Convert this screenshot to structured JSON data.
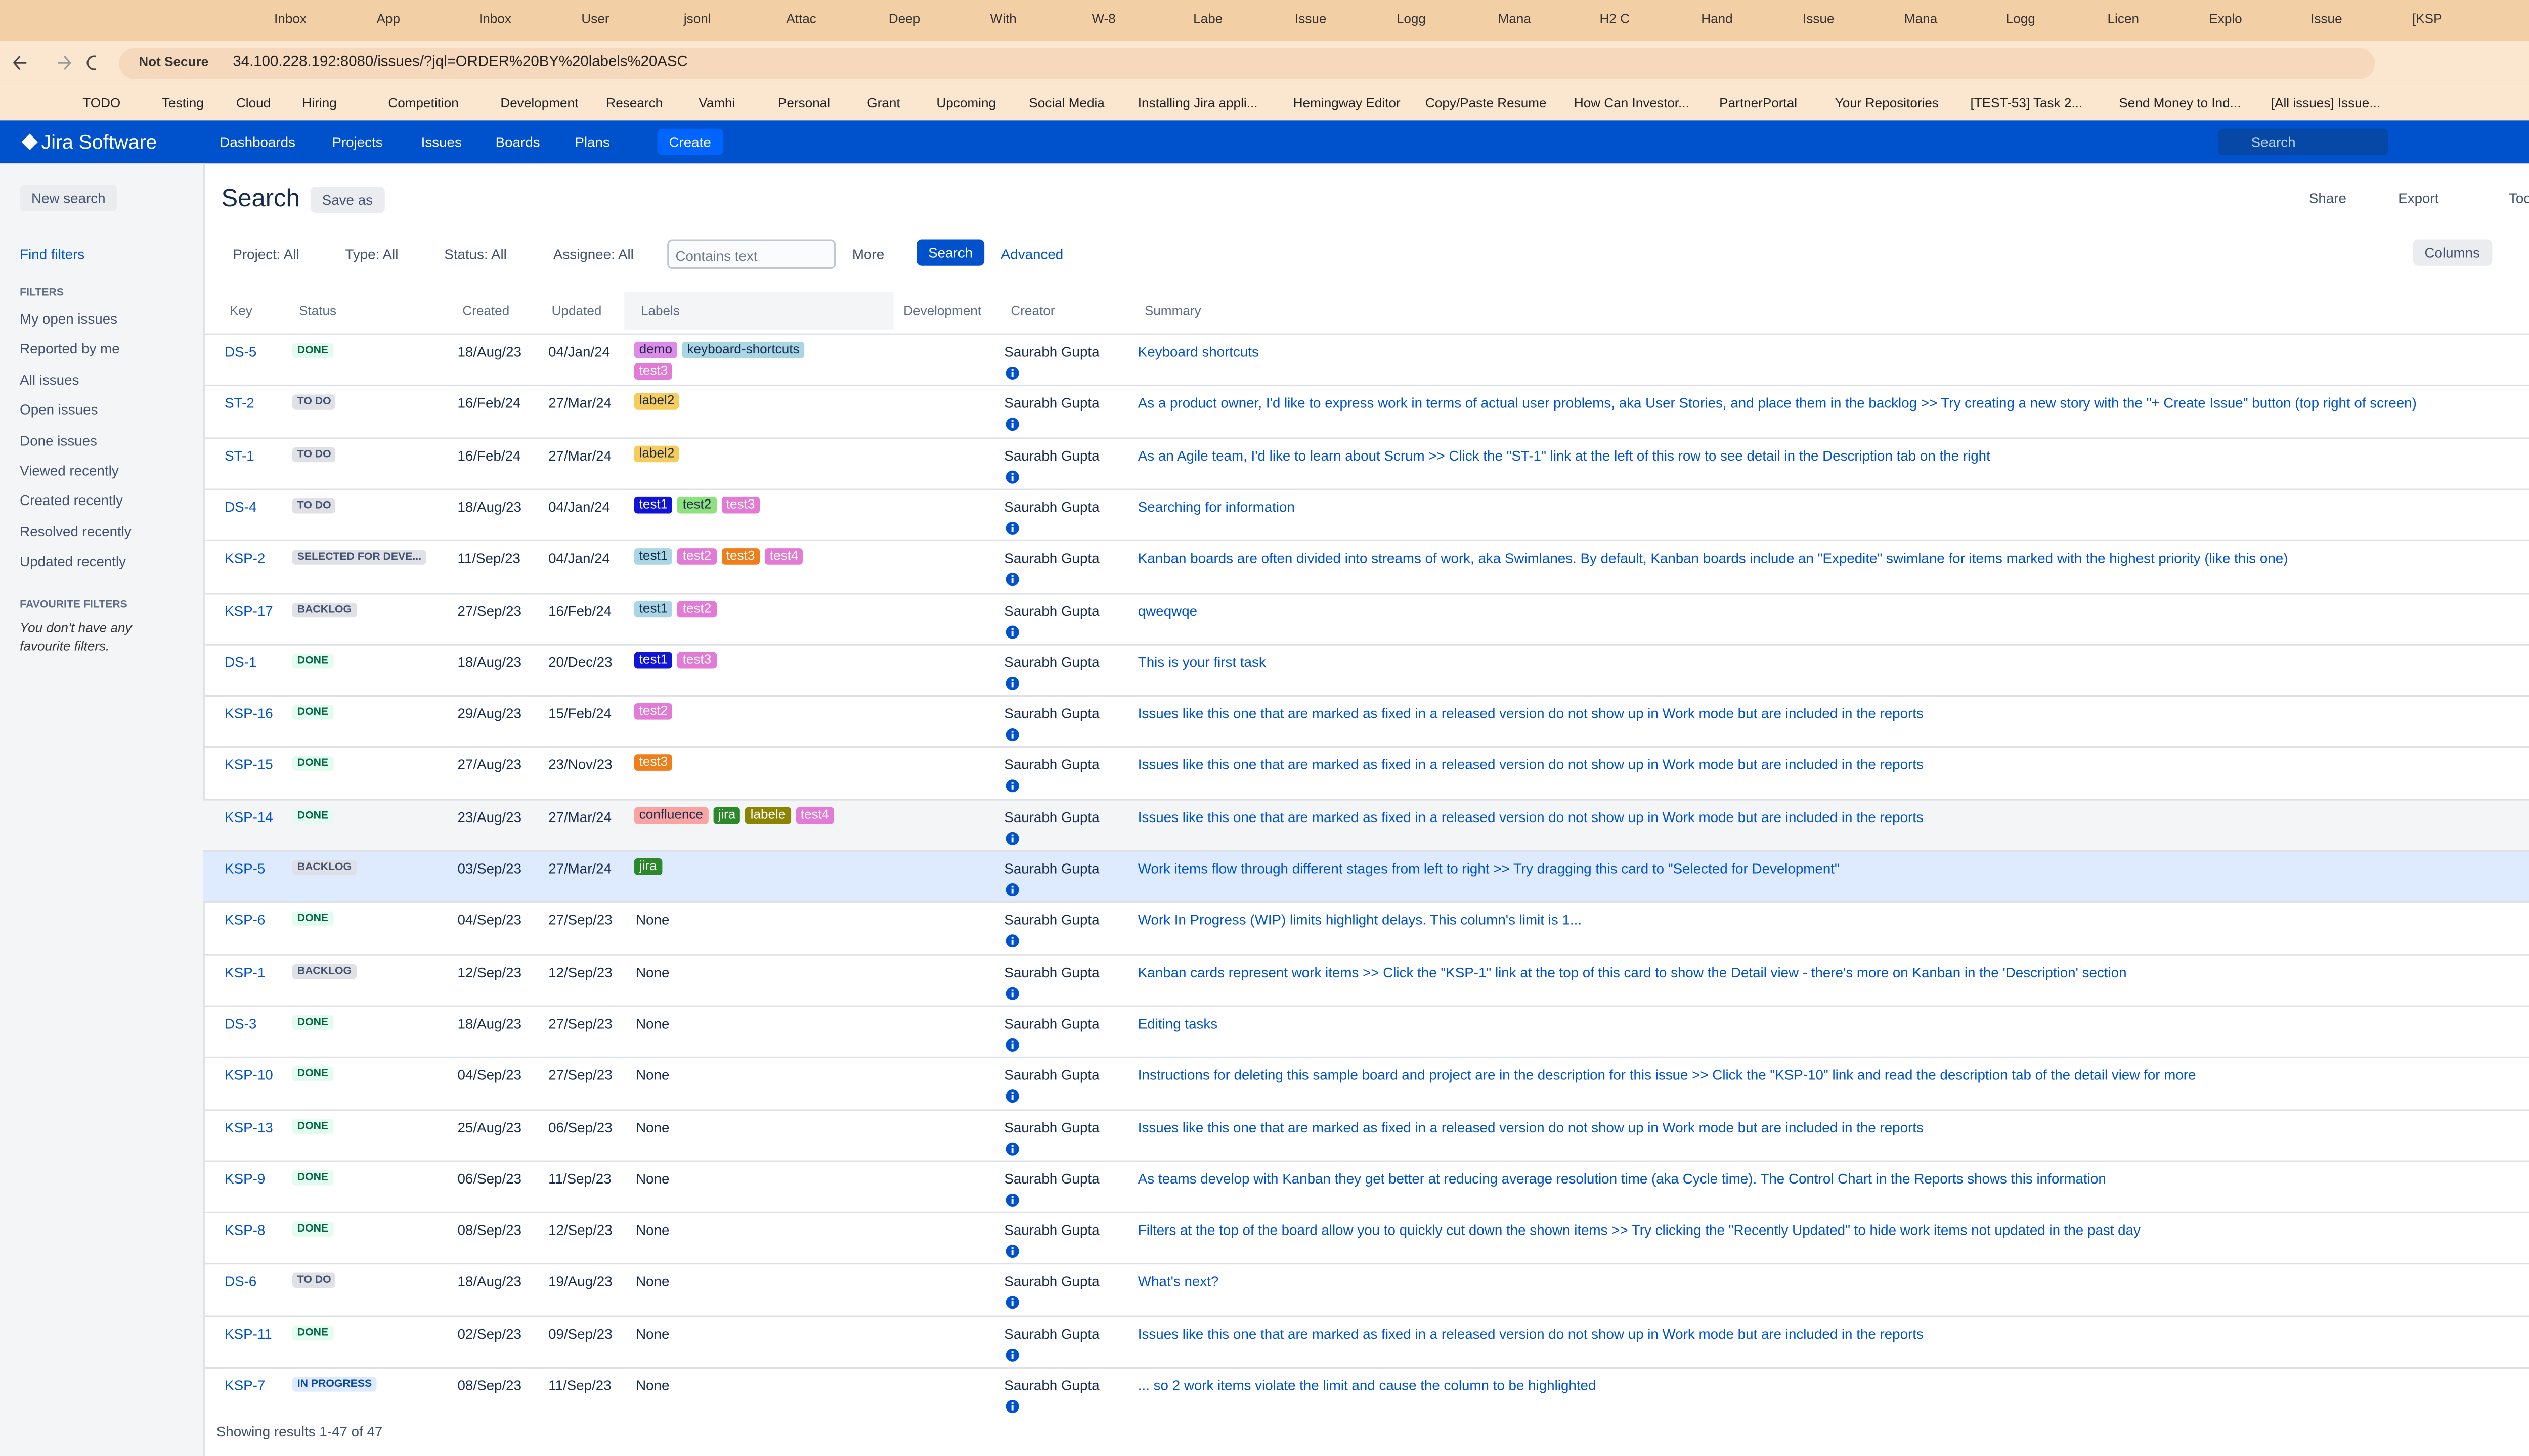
{
  "browser": {
    "tabs": [
      "Inbox",
      "App",
      "Inbox",
      "User",
      "jsonl",
      "Attac",
      "Deep",
      "With",
      "W-8",
      "Labe",
      "Issue",
      "Logg",
      "Mana",
      "H2 C",
      "Hand",
      "Issue",
      "Mana",
      "Logg",
      "Licen",
      "Explo",
      "Issue",
      "[KSP"
    ],
    "security": "Not Secure",
    "url": "34.100.228.192:8080/issues/?jql=ORDER%20BY%20labels%20ASC",
    "bookmarks": [
      "TODO",
      "Testing",
      "Cloud",
      "Hiring",
      "Competition",
      "Development",
      "Research",
      "Vamhi",
      "Personal",
      "Grant",
      "Upcoming",
      "Social Media",
      "Installing Jira appli...",
      "Hemingway Editor",
      "Copy/Paste Resume",
      "How Can Investor...",
      "PartnerPortal",
      "Your Repositories",
      "[TEST-53] Task 2...",
      "Send Money to Ind...",
      "[All issues] Issue..."
    ]
  },
  "nav": {
    "brand": "Jira Software",
    "menu": [
      "Dashboards",
      "Projects",
      "Issues",
      "Boards",
      "Plans"
    ],
    "create": "Create",
    "search": "Search"
  },
  "sidebar": {
    "new_search": "New search",
    "find_filters": "Find filters",
    "filters_heading": "FILTERS",
    "filters": [
      "My open issues",
      "Reported by me",
      "All issues",
      "Open issues",
      "Done issues",
      "Viewed recently",
      "Created recently",
      "Resolved recently",
      "Updated recently"
    ],
    "favourites_heading": "FAVOURITE FILTERS",
    "favourites_empty": "You don't have any favourite filters."
  },
  "header": {
    "title": "Search",
    "save_as": "Save as",
    "share": "Share",
    "export": "Export",
    "tools": "Tools"
  },
  "filter_bar": {
    "project": "Project: All",
    "type": "Type: All",
    "status": "Status: All",
    "assignee": "Assignee: All",
    "text_placeholder": "Contains text",
    "more": "More",
    "search": "Search",
    "advanced": "Advanced",
    "columns": "Columns"
  },
  "table": {
    "columns": [
      "Key",
      "Status",
      "Created",
      "Updated",
      "Labels",
      "Development",
      "Creator",
      "Summary"
    ],
    "rows": [
      {
        "key": "DS-5",
        "status": {
          "text": "DONE",
          "color": "#006644",
          "bg": "#e3fcef"
        },
        "created": "18/Aug/23",
        "updated": "04/Jan/24",
        "labels": [
          {
            "text": "demo",
            "color": "#dd8be6"
          },
          {
            "text": "keyboard-shortcuts",
            "color": "#a9d5e4"
          },
          {
            "text": "test3",
            "color": "#e27bd5"
          }
        ],
        "creator": "Saurabh Gupta",
        "summary": "Keyboard shortcuts"
      },
      {
        "key": "ST-2",
        "status": {
          "text": "TO DO",
          "color": "#42526e",
          "bg": "#dfe1e6"
        },
        "created": "16/Feb/24",
        "updated": "27/Mar/24",
        "labels": [
          {
            "text": "label2",
            "color": "#f6cd5c"
          }
        ],
        "creator": "Saurabh Gupta",
        "summary": "As a product owner, I'd like to express work in terms of actual user problems, aka User Stories, and place them in the backlog >> Try creating a new story with the \"+ Create Issue\" button (top right of screen)"
      },
      {
        "key": "ST-1",
        "status": {
          "text": "TO DO",
          "color": "#42526e",
          "bg": "#dfe1e6"
        },
        "created": "16/Feb/24",
        "updated": "27/Mar/24",
        "labels": [
          {
            "text": "label2",
            "color": "#f6cd5c"
          }
        ],
        "creator": "Saurabh Gupta",
        "summary": "As an Agile team, I'd like to learn about Scrum >> Click the \"ST-1\" link at the left of this row to see detail in the Description tab on the right"
      },
      {
        "key": "DS-4",
        "status": {
          "text": "TO DO",
          "color": "#42526e",
          "bg": "#dfe1e6"
        },
        "created": "18/Aug/23",
        "updated": "04/Jan/24",
        "labels": [
          {
            "text": "test1",
            "color": "#0f14d6"
          },
          {
            "text": "test2",
            "color": "#8fe07f"
          },
          {
            "text": "test3",
            "color": "#e27bd5"
          }
        ],
        "creator": "Saurabh Gupta",
        "summary": "Searching for information"
      },
      {
        "key": "KSP-2",
        "status": {
          "text": "SELECTED FOR DEVE...",
          "color": "#42526e",
          "bg": "#dfe1e6"
        },
        "created": "11/Sep/23",
        "updated": "04/Jan/24",
        "labels": [
          {
            "text": "test1",
            "color": "#a9d5e4"
          },
          {
            "text": "test2",
            "color": "#e27bd5"
          },
          {
            "text": "test3",
            "color": "#ef7d1a"
          },
          {
            "text": "test4",
            "color": "#e27bd5"
          }
        ],
        "creator": "Saurabh Gupta",
        "summary": "Kanban boards are often divided into streams of work, aka Swimlanes. By default, Kanban boards include an \"Expedite\" swimlane for items marked with the highest priority (like this one)"
      },
      {
        "key": "KSP-17",
        "status": {
          "text": "BACKLOG",
          "color": "#42526e",
          "bg": "#dfe1e6"
        },
        "created": "27/Sep/23",
        "updated": "16/Feb/24",
        "labels": [
          {
            "text": "test1",
            "color": "#a9d5e4"
          },
          {
            "text": "test2",
            "color": "#e27bd5"
          }
        ],
        "creator": "Saurabh Gupta",
        "summary": "qweqwqe"
      },
      {
        "key": "DS-1",
        "status": {
          "text": "DONE",
          "color": "#006644",
          "bg": "#e3fcef"
        },
        "created": "18/Aug/23",
        "updated": "20/Dec/23",
        "labels": [
          {
            "text": "test1",
            "color": "#0f14d6"
          },
          {
            "text": "test3",
            "color": "#e27bd5"
          }
        ],
        "creator": "Saurabh Gupta",
        "summary": "This is your first task"
      },
      {
        "key": "KSP-16",
        "status": {
          "text": "DONE",
          "color": "#006644",
          "bg": "#e3fcef"
        },
        "created": "29/Aug/23",
        "updated": "15/Feb/24",
        "labels": [
          {
            "text": "test2",
            "color": "#e27bd5"
          }
        ],
        "creator": "Saurabh Gupta",
        "summary": "Issues like this one that are marked as fixed in a released version do not show up in Work mode but are included in the reports"
      },
      {
        "key": "KSP-15",
        "status": {
          "text": "DONE",
          "color": "#006644",
          "bg": "#e3fcef"
        },
        "created": "27/Aug/23",
        "updated": "23/Nov/23",
        "labels": [
          {
            "text": "test3",
            "color": "#ef7d1a"
          }
        ],
        "creator": "Saurabh Gupta",
        "summary": "Issues like this one that are marked as fixed in a released version do not show up in Work mode but are included in the reports"
      },
      {
        "key": "KSP-14",
        "status": {
          "text": "DONE",
          "color": "#006644",
          "bg": "#e3fcef"
        },
        "created": "23/Aug/23",
        "updated": "27/Mar/24",
        "labels": [
          {
            "text": "confluence",
            "color": "#f9a3a3"
          },
          {
            "text": "jira",
            "color": "#2a8a2a"
          },
          {
            "text": "labele",
            "color": "#8a8400"
          },
          {
            "text": "test4",
            "color": "#e27bd5"
          }
        ],
        "creator": "Saurabh Gupta",
        "summary": "Issues like this one that are marked as fixed in a released version do not show up in Work mode but are included in the reports"
      },
      {
        "key": "KSP-5",
        "status": {
          "text": "BACKLOG",
          "color": "#42526e",
          "bg": "#dfe1e6"
        },
        "created": "03/Sep/23",
        "updated": "27/Mar/24",
        "labels": [
          {
            "text": "jira",
            "color": "#2a8a2a"
          }
        ],
        "creator": "Saurabh Gupta",
        "summary": "Work items flow through different stages from left to right >> Try dragging this card to \"Selected for Development\""
      },
      {
        "key": "KSP-6",
        "status": {
          "text": "DONE",
          "color": "#006644",
          "bg": "#e3fcef"
        },
        "created": "04/Sep/23",
        "updated": "27/Sep/23",
        "labels": "None",
        "creator": "Saurabh Gupta",
        "summary": "Work In Progress (WIP) limits highlight delays. This column's limit is 1..."
      },
      {
        "key": "KSP-1",
        "status": {
          "text": "BACKLOG",
          "color": "#42526e",
          "bg": "#dfe1e6"
        },
        "created": "12/Sep/23",
        "updated": "12/Sep/23",
        "labels": "None",
        "creator": "Saurabh Gupta",
        "summary": "Kanban cards represent work items >> Click the \"KSP-1\" link at the top of this card to show the Detail view - there's more on Kanban in the 'Description' section"
      },
      {
        "key": "DS-3",
        "status": {
          "text": "DONE",
          "color": "#006644",
          "bg": "#e3fcef"
        },
        "created": "18/Aug/23",
        "updated": "27/Sep/23",
        "labels": "None",
        "creator": "Saurabh Gupta",
        "summary": "Editing tasks"
      },
      {
        "key": "KSP-10",
        "status": {
          "text": "DONE",
          "color": "#006644",
          "bg": "#e3fcef"
        },
        "created": "04/Sep/23",
        "updated": "27/Sep/23",
        "labels": "None",
        "creator": "Saurabh Gupta",
        "summary": "Instructions for deleting this sample board and project are in the description for this issue >> Click the \"KSP-10\" link and read the description tab of the detail view for more"
      },
      {
        "key": "KSP-13",
        "status": {
          "text": "DONE",
          "color": "#006644",
          "bg": "#e3fcef"
        },
        "created": "25/Aug/23",
        "updated": "06/Sep/23",
        "labels": "None",
        "creator": "Saurabh Gupta",
        "summary": "Issues like this one that are marked as fixed in a released version do not show up in Work mode but are included in the reports"
      },
      {
        "key": "KSP-9",
        "status": {
          "text": "DONE",
          "color": "#006644",
          "bg": "#e3fcef"
        },
        "created": "06/Sep/23",
        "updated": "11/Sep/23",
        "labels": "None",
        "creator": "Saurabh Gupta",
        "summary": "As teams develop with Kanban they get better at reducing average resolution time (aka Cycle time). The Control Chart in the Reports shows this information"
      },
      {
        "key": "KSP-8",
        "status": {
          "text": "DONE",
          "color": "#006644",
          "bg": "#e3fcef"
        },
        "created": "08/Sep/23",
        "updated": "12/Sep/23",
        "labels": "None",
        "creator": "Saurabh Gupta",
        "summary": "Filters at the top of the board allow you to quickly cut down the shown items >> Try clicking the \"Recently Updated\" to hide work items not updated in the past day"
      },
      {
        "key": "DS-6",
        "status": {
          "text": "TO DO",
          "color": "#42526e",
          "bg": "#dfe1e6"
        },
        "created": "18/Aug/23",
        "updated": "19/Aug/23",
        "labels": "None",
        "creator": "Saurabh Gupta",
        "summary": "What's next?"
      },
      {
        "key": "KSP-11",
        "status": {
          "text": "DONE",
          "color": "#006644",
          "bg": "#e3fcef"
        },
        "created": "02/Sep/23",
        "updated": "09/Sep/23",
        "labels": "None",
        "creator": "Saurabh Gupta",
        "summary": "Issues like this one that are marked as fixed in a released version do not show up in Work mode but are included in the reports"
      },
      {
        "key": "KSP-7",
        "status": {
          "text": "IN PROGRESS",
          "color": "#0747a6",
          "bg": "#deebff"
        },
        "created": "08/Sep/23",
        "updated": "11/Sep/23",
        "labels": "None",
        "creator": "Saurabh Gupta",
        "summary": "... so 2 work items violate the limit and cause the column to be highlighted"
      }
    ]
  },
  "footer": {
    "results": "Showing results 1-47 of 47"
  }
}
